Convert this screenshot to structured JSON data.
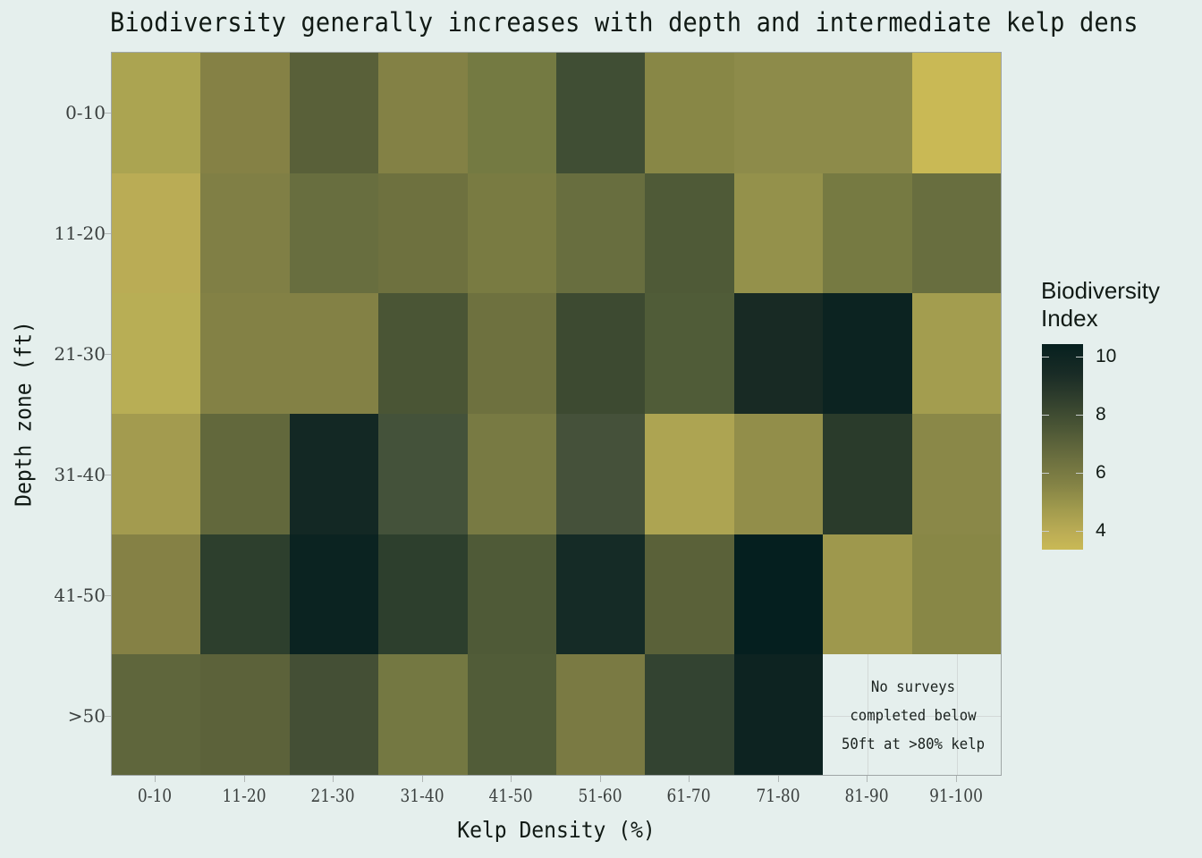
{
  "chart_data": {
    "type": "heatmap",
    "title": "Biodiversity generally increases with depth and intermediate kelp dens",
    "xlabel": "Kelp Density (%)",
    "ylabel": "Depth zone (ft)",
    "x_categories": [
      "0-10",
      "11-20",
      "21-30",
      "31-40",
      "41-50",
      "51-60",
      "61-70",
      "71-80",
      "81-90",
      "91-100"
    ],
    "y_categories": [
      "0-10",
      "11-20",
      "21-30",
      "31-40",
      "41-50",
      ">50"
    ],
    "values": [
      [
        4.8,
        6.0,
        7.5,
        6.1,
        6.5,
        8.5,
        5.9,
        5.6,
        5.6,
        3.5
      ],
      [
        4.1,
        6.1,
        6.9,
        6.7,
        6.3,
        6.9,
        8.0,
        5.3,
        6.5,
        6.9
      ],
      [
        4.1,
        6.1,
        6.1,
        8.1,
        6.7,
        8.6,
        7.9,
        9.6,
        10.1,
        5.0
      ],
      [
        5.0,
        7.3,
        9.8,
        8.4,
        6.4,
        8.3,
        4.8,
        5.5,
        9.0,
        5.8
      ],
      [
        6.1,
        9.0,
        10.1,
        9.0,
        7.9,
        9.7,
        7.5,
        10.4,
        5.2,
        5.9
      ],
      [
        7.4,
        7.5,
        8.5,
        6.4,
        7.9,
        6.2,
        8.9,
        10.2,
        null,
        null
      ]
    ],
    "colorbar": {
      "title": "Biodiversity Index",
      "ticks": [
        10,
        8,
        6,
        4
      ],
      "range": [
        3.4,
        10.4
      ],
      "low_color": "#c9b955",
      "high_color": "#06201f"
    },
    "annotations": [
      "No surveys completed below 50ft at >80% kelp"
    ]
  },
  "title": "Biodiversity generally increases with depth and intermediate kelp dens",
  "axes": {
    "xlabel": "Kelp Density (%)",
    "ylabel": "Depth zone (ft)",
    "xticks": [
      "0-10",
      "11-20",
      "21-30",
      "31-40",
      "41-50",
      "51-60",
      "61-70",
      "71-80",
      "81-90",
      "91-100"
    ],
    "yticks": [
      "0-10",
      "11-20",
      "21-30",
      "31-40",
      "41-50",
      ">50"
    ]
  },
  "legend": {
    "title_line1": "Biodiversity",
    "title_line2": "Index",
    "labels": [
      "10",
      "8",
      "6",
      "4"
    ]
  },
  "annotation": {
    "line1": "No surveys",
    "line2": "completed below",
    "line3": "50ft at >80% kelp"
  },
  "cell_colors": [
    [
      "#aba451",
      "#858145",
      "#596039",
      "#838145",
      "#747a42",
      "#404e34",
      "#888746",
      "#8d8b4a",
      "#8d8b4a",
      "#c9b955"
    ],
    [
      "#baac55",
      "#807f45",
      "#686e3f",
      "#6e713f",
      "#797b42",
      "#686e3f",
      "#4f5a37",
      "#94914b",
      "#767a42",
      "#686e3f"
    ],
    [
      "#b8ae55",
      "#838145",
      "#838145",
      "#4a5535",
      "#6e713f",
      "#3d4a31",
      "#505c38",
      "#182a24",
      "#0c2321",
      "#a39d4f"
    ],
    [
      "#a39b4f",
      "#62683c",
      "#132824",
      "#44523a",
      "#787a43",
      "#45513a",
      "#ada452",
      "#928e4a",
      "#2a3b2b",
      "#8a8848"
    ],
    [
      "#858145",
      "#2d3f2d",
      "#0b2321",
      "#2d3f2d",
      "#4f5a37",
      "#152b26",
      "#5a6139",
      "#051f1f",
      "#9e984d",
      "#888746"
    ],
    [
      "#5f663c",
      "#5c623a",
      "#444f35",
      "#747842",
      "#515c38",
      "#7a7a43",
      "#334331",
      "#0d2321",
      "na",
      "na"
    ]
  ]
}
